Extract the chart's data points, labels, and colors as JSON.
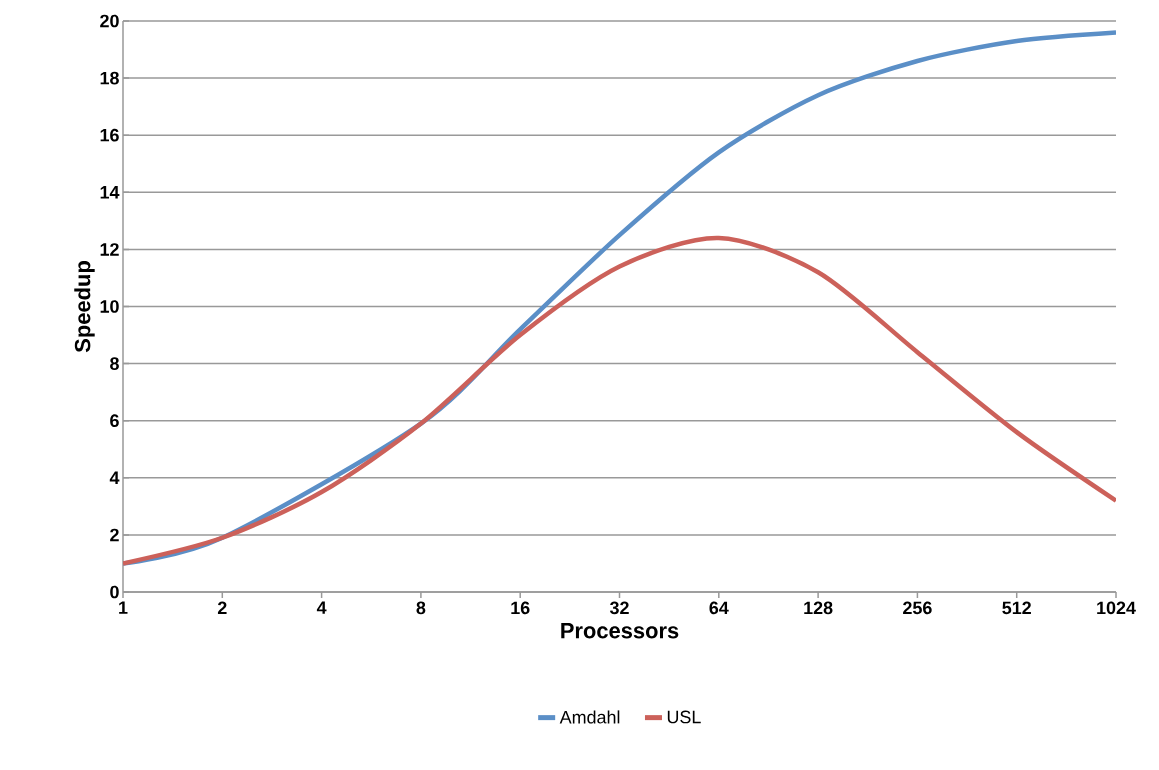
{
  "chart_data": {
    "type": "line",
    "xlabel": "Processors",
    "ylabel": "Speedup",
    "categories": [
      "1",
      "2",
      "4",
      "8",
      "16",
      "32",
      "64",
      "128",
      "256",
      "512",
      "1024"
    ],
    "series": [
      {
        "name": "Amdahl",
        "color": "#5b8fc7",
        "values": [
          1,
          1.9,
          null,
          5.9,
          9.2,
          12.5,
          15.4,
          17.4,
          18.6,
          19.3,
          19.6
        ]
      },
      {
        "name": "USL",
        "color": "#cc615a",
        "values": [
          1,
          1.9,
          3.5,
          5.9,
          9.0,
          11.4,
          12.4,
          11.2,
          8.4,
          5.6,
          3.2
        ]
      }
    ],
    "ylim": [
      0,
      20
    ],
    "yticks": [
      0,
      2,
      4,
      6,
      8,
      10,
      12,
      14,
      16,
      18,
      20
    ],
    "grid": "y",
    "legend": "bottom",
    "marker": "none",
    "line_style": "solid"
  }
}
